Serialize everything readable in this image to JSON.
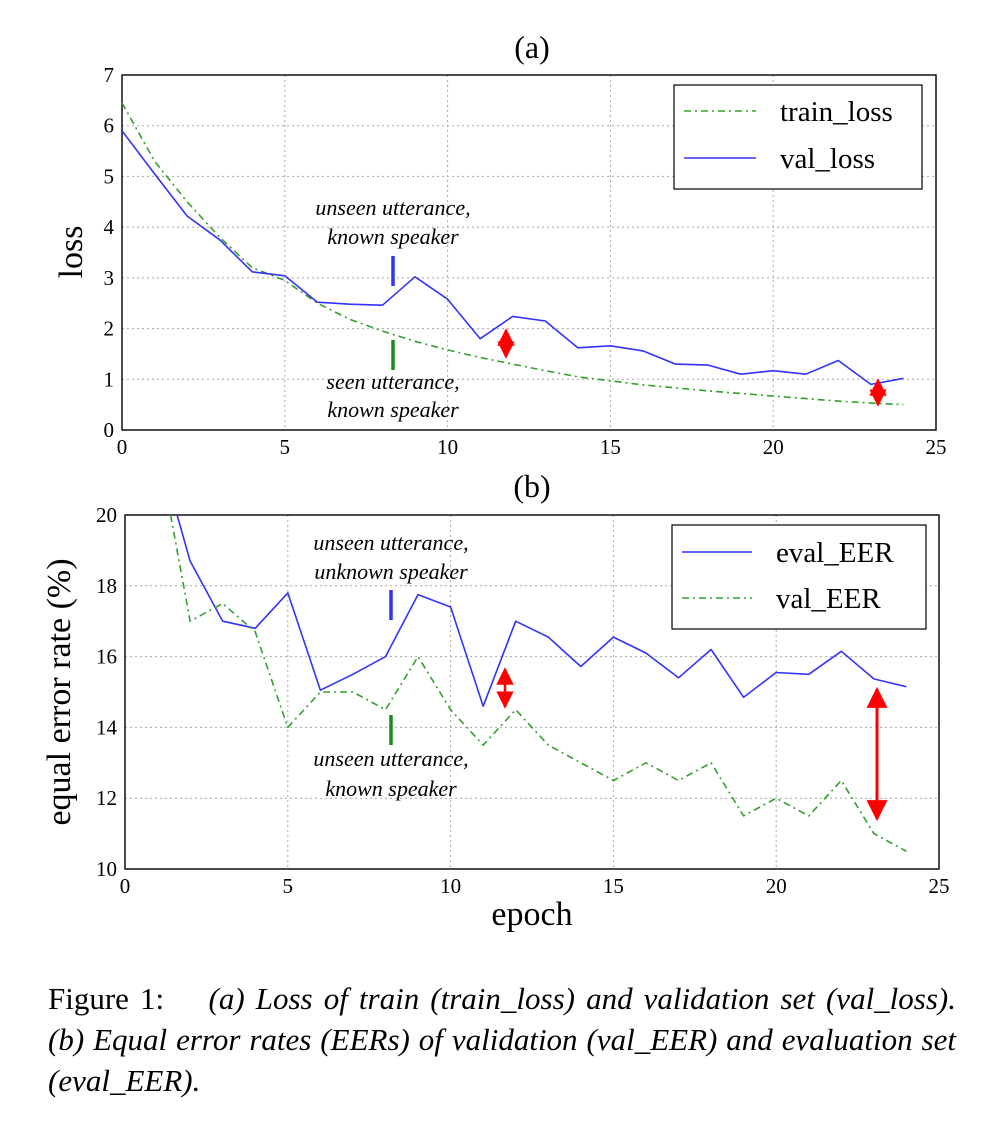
{
  "chart_data": [
    {
      "type": "line",
      "title": "(a)",
      "xlabel": "",
      "ylabel": "loss",
      "xlim": [
        0,
        25
      ],
      "ylim": [
        0,
        7
      ],
      "xticks": [
        "0",
        "5",
        "10",
        "15",
        "20",
        "25"
      ],
      "yticks": [
        "0",
        "1",
        "2",
        "3",
        "4",
        "5",
        "6",
        "7"
      ],
      "grid": true,
      "legend_position": "top-right",
      "series": [
        {
          "name": "train_loss",
          "style": "dash-dot",
          "color": "#33a02c",
          "x": [
            0,
            1,
            2,
            3,
            4,
            5,
            6,
            7,
            8,
            9,
            10,
            11,
            12,
            13,
            14,
            15,
            16,
            17,
            18,
            19,
            20,
            21,
            22,
            23,
            24
          ],
          "y": [
            6.45,
            5.3,
            4.5,
            3.8,
            3.2,
            2.95,
            2.5,
            2.18,
            1.95,
            1.75,
            1.58,
            1.43,
            1.3,
            1.17,
            1.05,
            0.97,
            0.89,
            0.83,
            0.77,
            0.72,
            0.67,
            0.62,
            0.57,
            0.53,
            0.5
          ]
        },
        {
          "name": "val_loss",
          "style": "solid",
          "color": "#3333ff",
          "x": [
            0,
            1,
            2,
            3,
            4,
            5,
            6,
            7,
            8,
            9,
            10,
            11,
            12,
            13,
            14,
            15,
            16,
            17,
            18,
            19,
            20,
            21,
            22,
            23,
            24
          ],
          "y": [
            5.9,
            5.05,
            4.22,
            3.75,
            3.12,
            3.04,
            2.52,
            2.48,
            2.46,
            3.02,
            2.58,
            1.8,
            2.24,
            2.15,
            1.62,
            1.66,
            1.56,
            1.3,
            1.28,
            1.1,
            1.17,
            1.1,
            1.37,
            0.9,
            1.02
          ]
        }
      ],
      "annotations": [
        {
          "lines": [
            "unseen utterance,",
            "known speaker"
          ]
        },
        {
          "lines": [
            "seen utterance,",
            "known speaker"
          ]
        }
      ]
    },
    {
      "type": "line",
      "title": "(b)",
      "xlabel": "epoch",
      "ylabel": "equal error rate (%)",
      "xlim": [
        0,
        25
      ],
      "ylim": [
        10,
        20
      ],
      "xticks": [
        "0",
        "5",
        "10",
        "15",
        "20",
        "25"
      ],
      "yticks": [
        "10",
        "12",
        "14",
        "16",
        "18",
        "20"
      ],
      "grid": true,
      "legend_position": "top-right",
      "series": [
        {
          "name": "eval_EER",
          "style": "solid",
          "color": "#3333ff",
          "x": [
            1.6,
            2,
            3,
            4,
            5,
            6,
            7,
            8,
            9,
            10,
            11,
            12,
            13,
            14,
            15,
            16,
            17,
            18,
            19,
            20,
            21,
            22,
            23,
            24
          ],
          "y": [
            20,
            18.7,
            17,
            16.8,
            17.8,
            15.05,
            15.5,
            16,
            17.75,
            17.4,
            14.6,
            17,
            16.55,
            15.72,
            16.55,
            16.1,
            15.4,
            16.2,
            14.85,
            15.55,
            15.5,
            16.15,
            15.37,
            15.15
          ]
        },
        {
          "name": "val_EER",
          "style": "dash-dot",
          "color": "#33a02c",
          "x": [
            1.4,
            2,
            3,
            4,
            5,
            6,
            7,
            8,
            9,
            10,
            11,
            12,
            13,
            14,
            15,
            16,
            17,
            18,
            19,
            20,
            21,
            22,
            23,
            24
          ],
          "y": [
            20,
            17,
            17.5,
            16.7,
            14,
            15,
            15,
            14.5,
            16,
            14.5,
            13.5,
            14.5,
            13.5,
            13,
            12.5,
            13,
            12.5,
            13,
            11.5,
            12,
            11.5,
            12.5,
            11,
            10.5
          ]
        }
      ],
      "annotations": [
        {
          "lines": [
            "unseen utterance,",
            "unknown speaker"
          ]
        },
        {
          "lines": [
            "unseen utterance,",
            "known speaker"
          ]
        }
      ]
    }
  ],
  "caption": {
    "lead": "Figure 1:",
    "body": "(a) Loss of train (train_loss) and validation set (val_loss). (b) Equal error rates (EERs) of validation (val_EER) and evaluation set (eval_EER)."
  },
  "colors": {
    "blue": "#3333ff",
    "green": "#33a02c",
    "arrow_red": "#ff0000",
    "grid": "#a8a8a8"
  }
}
